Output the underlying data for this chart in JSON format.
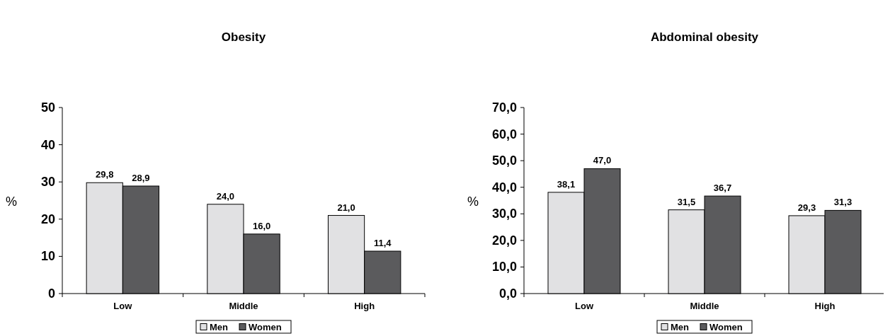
{
  "chart_data": [
    {
      "type": "bar",
      "title": "Obesity",
      "ylabel": "%",
      "categories": [
        "Low",
        "Middle",
        "High"
      ],
      "ylim": [
        0,
        50
      ],
      "yticks": [
        0,
        10,
        20,
        30,
        40,
        50
      ],
      "grid": false,
      "legend": "bottom",
      "series": [
        {
          "name": "Men",
          "color": "#e1e1e3",
          "values": [
            29.8,
            24.0,
            21.0
          ],
          "value_labels": [
            "29,8",
            "24,0",
            "21,0"
          ]
        },
        {
          "name": "Women",
          "color": "#5b5b5d",
          "values": [
            28.9,
            16.0,
            11.4
          ],
          "value_labels": [
            "28,9",
            "16,0",
            "11,4"
          ]
        }
      ]
    },
    {
      "type": "bar",
      "title": "Abdominal obesity",
      "ylabel": "%",
      "categories": [
        "Low",
        "Middle",
        "High"
      ],
      "ylim": [
        0,
        70
      ],
      "yticks": [
        {
          "value": 0,
          "label": "0,0"
        },
        {
          "value": 10,
          "label": "10,0"
        },
        {
          "value": 20,
          "label": "20,0"
        },
        {
          "value": 30,
          "label": "30,0"
        },
        {
          "value": 40,
          "label": "40,0"
        },
        {
          "value": 50,
          "label": "50,0"
        },
        {
          "value": 60,
          "label": "60,0"
        },
        {
          "value": 70,
          "label": "70,0"
        }
      ],
      "grid": false,
      "legend": "bottom",
      "series": [
        {
          "name": "Men",
          "color": "#e1e1e3",
          "values": [
            38.1,
            31.5,
            29.3
          ],
          "value_labels": [
            "38,1",
            "31,5",
            "29,3"
          ]
        },
        {
          "name": "Women",
          "color": "#5b5b5d",
          "values": [
            47.0,
            36.7,
            31.3
          ],
          "value_labels": [
            "47,0",
            "36,7",
            "31,3"
          ]
        }
      ]
    }
  ]
}
